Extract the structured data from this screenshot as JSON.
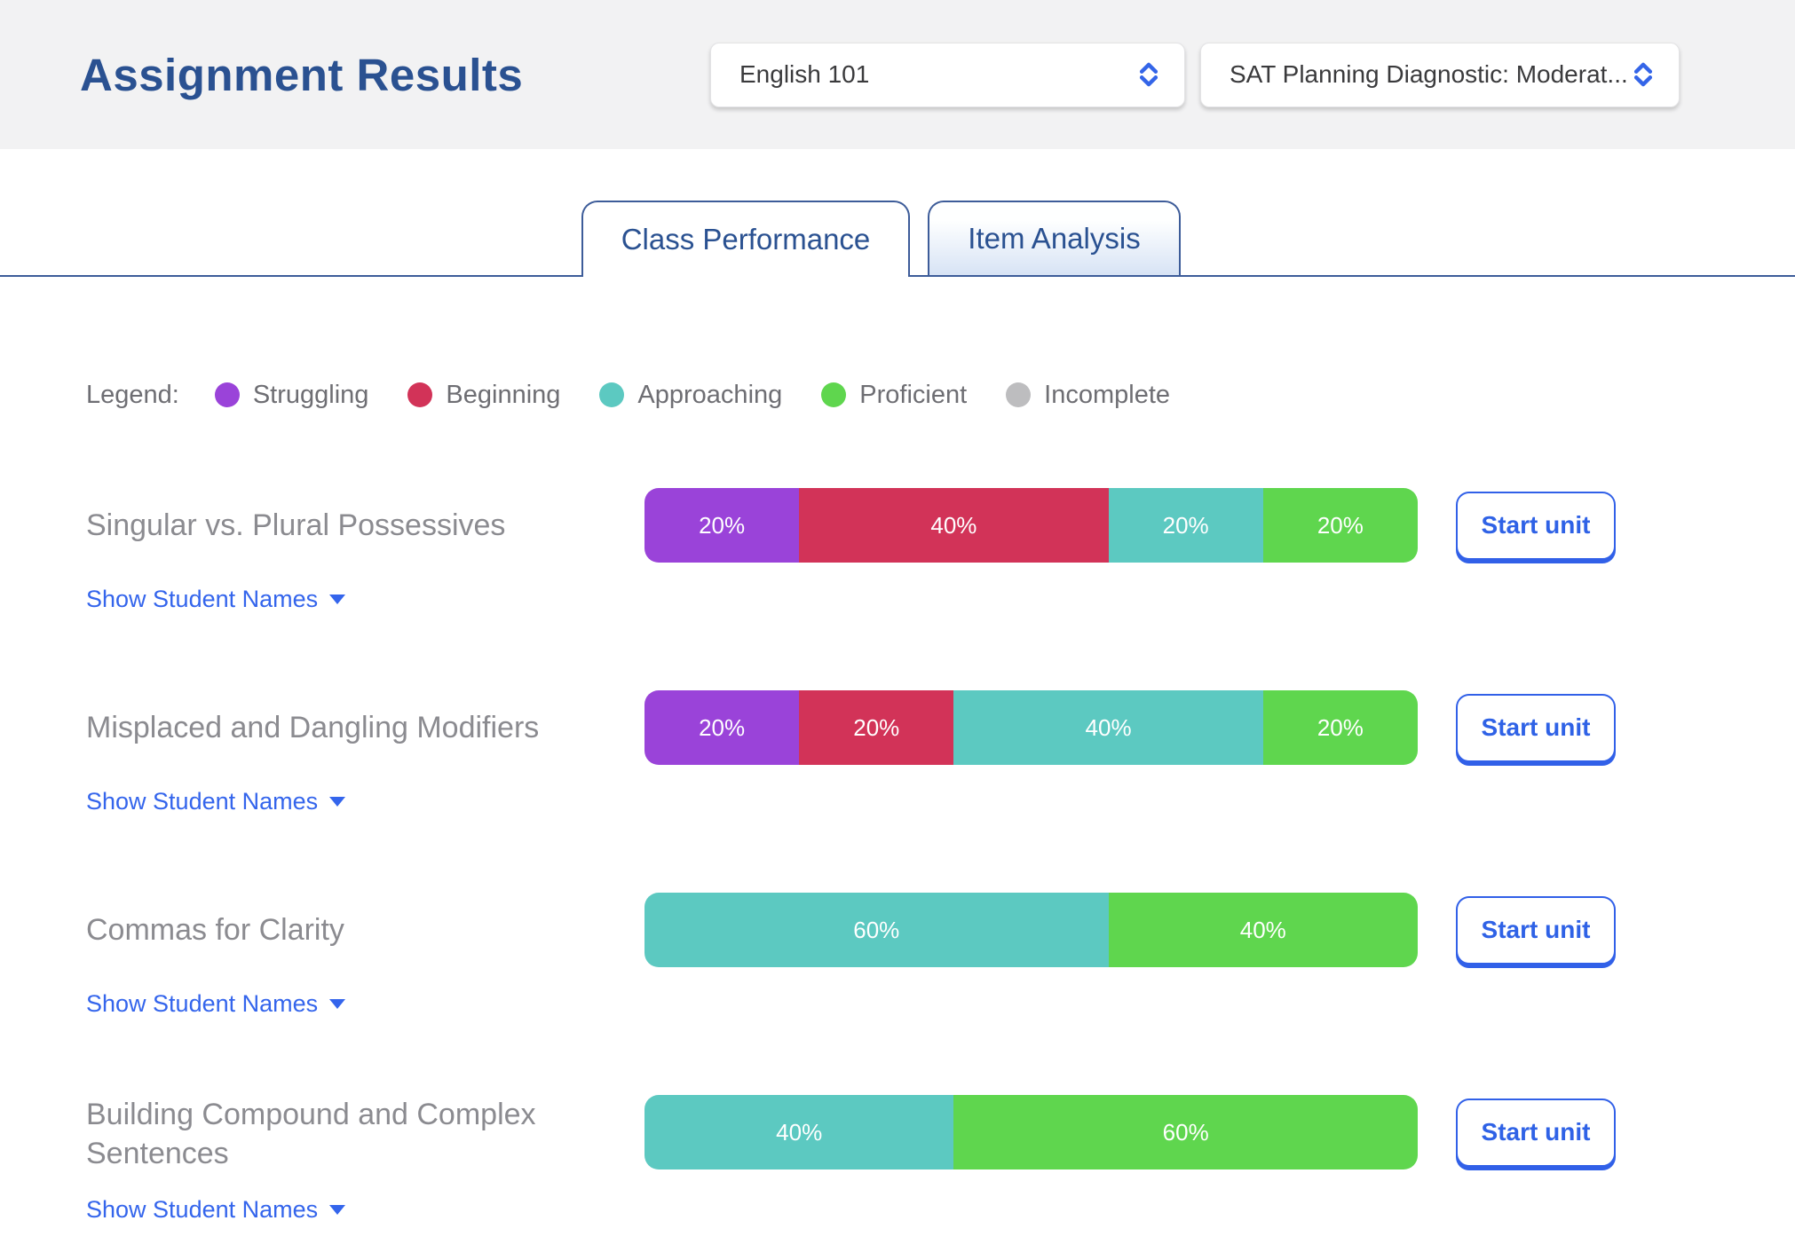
{
  "header": {
    "title": "Assignment Results",
    "class_dropdown": {
      "value": "English 101"
    },
    "assignment_dropdown": {
      "value": "SAT Planning Diagnostic: Moderat..."
    }
  },
  "tabs": [
    {
      "label": "Class Performance",
      "active": true
    },
    {
      "label": "Item Analysis",
      "active": false
    }
  ],
  "legend": {
    "label": "Legend:",
    "items": [
      {
        "label": "Struggling",
        "color": "#9a43d9"
      },
      {
        "label": "Beginning",
        "color": "#d23358"
      },
      {
        "label": "Approaching",
        "color": "#5cc9c1"
      },
      {
        "label": "Proficient",
        "color": "#5fd64e"
      },
      {
        "label": "Incomplete",
        "color": "#bdbdbf"
      }
    ]
  },
  "rows": [
    {
      "title": "Singular vs. Plural Possessives",
      "show_names_label": "Show Student Names",
      "button_label": "Start unit",
      "segments": [
        {
          "level": "Struggling",
          "percent": 20
        },
        {
          "level": "Beginning",
          "percent": 40
        },
        {
          "level": "Approaching",
          "percent": 20
        },
        {
          "level": "Proficient",
          "percent": 20
        }
      ]
    },
    {
      "title": "Misplaced and Dangling Modifiers",
      "show_names_label": "Show Student Names",
      "button_label": "Start unit",
      "segments": [
        {
          "level": "Struggling",
          "percent": 20
        },
        {
          "level": "Beginning",
          "percent": 20
        },
        {
          "level": "Approaching",
          "percent": 40
        },
        {
          "level": "Proficient",
          "percent": 20
        }
      ]
    },
    {
      "title": "Commas for Clarity",
      "show_names_label": "Show Student Names",
      "button_label": "Start unit",
      "segments": [
        {
          "level": "Approaching",
          "percent": 60
        },
        {
          "level": "Proficient",
          "percent": 40
        }
      ]
    },
    {
      "title": "Building Compound and Complex Sentences",
      "show_names_label": "Show Student Names",
      "button_label": "Start unit",
      "segments": [
        {
          "level": "Approaching",
          "percent": 40
        },
        {
          "level": "Proficient",
          "percent": 60
        }
      ]
    }
  ],
  "chart_data": {
    "type": "bar",
    "subtype": "stacked-horizontal",
    "categories": [
      "Singular vs. Plural Possessives",
      "Misplaced and Dangling Modifiers",
      "Commas for Clarity",
      "Building Compound and Complex Sentences"
    ],
    "series": [
      {
        "name": "Struggling",
        "values": [
          20,
          20,
          0,
          0
        ]
      },
      {
        "name": "Beginning",
        "values": [
          40,
          20,
          0,
          0
        ]
      },
      {
        "name": "Approaching",
        "values": [
          20,
          40,
          60,
          40
        ]
      },
      {
        "name": "Proficient",
        "values": [
          20,
          20,
          40,
          60
        ]
      },
      {
        "name": "Incomplete",
        "values": [
          0,
          0,
          0,
          0
        ]
      }
    ],
    "value_unit": "%",
    "xlim": [
      0,
      100
    ],
    "legend_position": "top"
  }
}
